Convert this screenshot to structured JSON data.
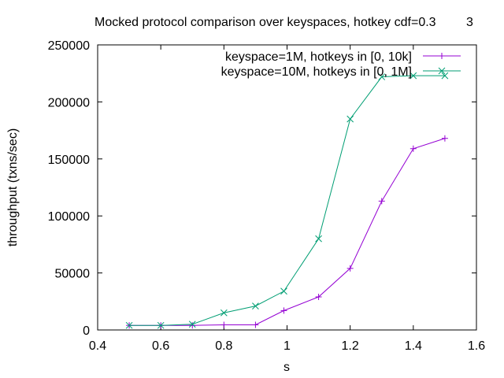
{
  "chart_data": {
    "type": "line",
    "title": "Mocked protocol comparison over keyspaces, hotkey cdf=0.3",
    "title_overlap": "3",
    "xlabel": "s",
    "ylabel": "throughput (txns/sec)",
    "xlim": [
      0.4,
      1.6
    ],
    "ylim": [
      0,
      250000
    ],
    "xticks": [
      0.4,
      0.6,
      0.8,
      1,
      1.2,
      1.4,
      1.6
    ],
    "xtick_labels": [
      "0.4",
      "0.6",
      "0.8",
      "1",
      "1.2",
      "1.4",
      "1.6"
    ],
    "yticks": [
      0,
      50000,
      100000,
      150000,
      200000,
      250000
    ],
    "ytick_labels": [
      "0",
      "50000",
      "100000",
      "150000",
      "200000",
      "250000"
    ],
    "grid": false,
    "legend_position": "top-right",
    "series": [
      {
        "name": "keyspace=1M, hotkeys in [0, 10k]",
        "color": "#9400d3",
        "marker": "plus",
        "x": [
          0.5,
          0.6,
          0.7,
          0.8,
          0.9,
          0.99,
          1.1,
          1.2,
          1.3,
          1.4,
          1.5
        ],
        "y": [
          4000,
          4000,
          4000,
          4500,
          4500,
          17000,
          29000,
          54000,
          113000,
          159000,
          168000
        ]
      },
      {
        "name": "keyspace=10M, hotkeys in [0, 1M]",
        "color": "#009e73",
        "marker": "cross",
        "x": [
          0.5,
          0.6,
          0.7,
          0.8,
          0.9,
          0.99,
          1.1,
          1.2,
          1.3,
          1.4,
          1.5
        ],
        "y": [
          4000,
          4000,
          5000,
          15000,
          21000,
          34000,
          80000,
          185000,
          222000,
          223000,
          223000
        ]
      }
    ]
  }
}
